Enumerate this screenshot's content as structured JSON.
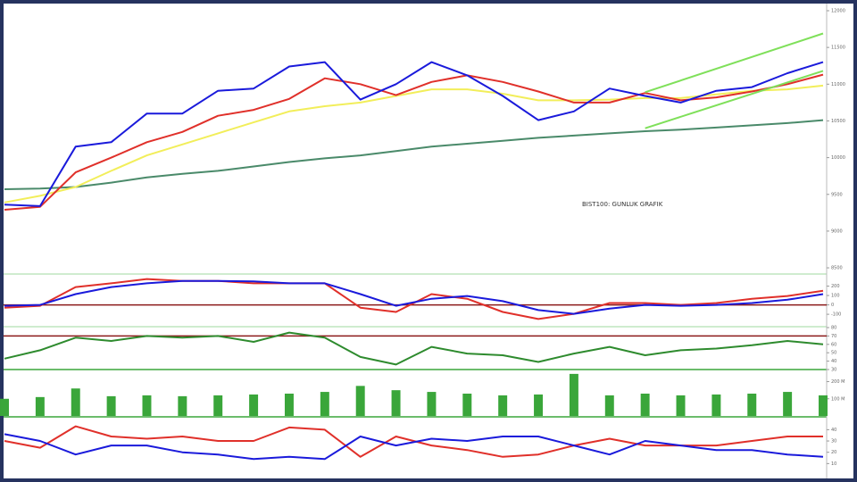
{
  "chart_data": [
    {
      "type": "line",
      "annotation": "BIST100: GUNLUK GRAFIK",
      "categories": [
        null,
        null,
        null,
        null,
        null,
        null,
        null,
        null,
        null,
        null,
        null,
        null,
        null,
        null,
        null,
        null,
        null,
        null,
        null,
        null,
        null,
        null,
        null,
        null
      ],
      "ylim": [
        8440,
        12085
      ],
      "yticks": [
        8500,
        9000,
        9500,
        10000,
        10500,
        11000,
        11500,
        12000
      ],
      "series": [
        {
          "color": "#4a8a6a",
          "values": [
            9570,
            9580,
            9600,
            9660,
            9730,
            9780,
            9820,
            9880,
            9940,
            9990,
            10030,
            10090,
            10150,
            10190,
            10230,
            10270,
            10300,
            10330,
            10360,
            10380,
            10410,
            10440,
            10470,
            10510
          ]
        },
        {
          "color": "#f2ee5a",
          "values": [
            9390,
            9480,
            9600,
            9820,
            10030,
            10180,
            10330,
            10480,
            10630,
            10700,
            10750,
            10840,
            10930,
            10930,
            10870,
            10780,
            10780,
            10790,
            10810,
            10810,
            10860,
            10910,
            10930,
            10980
          ]
        },
        {
          "color": "#e0302a",
          "values": [
            9290,
            9330,
            9800,
            10000,
            10210,
            10350,
            10570,
            10650,
            10800,
            11080,
            11000,
            10850,
            11030,
            11120,
            11030,
            10900,
            10750,
            10750,
            10880,
            10780,
            10820,
            10900,
            11000,
            11130
          ]
        },
        {
          "color": "#1a1adb",
          "values": [
            9360,
            9340,
            10150,
            10210,
            10600,
            10600,
            10910,
            10940,
            11240,
            11300,
            10790,
            11000,
            11300,
            11120,
            10840,
            10510,
            10630,
            10940,
            10840,
            10750,
            10910,
            10960,
            11150,
            11300
          ]
        }
      ],
      "channel_x": [
        18,
        23
      ],
      "channel_upper": [
        10890,
        11690
      ],
      "channel_lower": [
        10400,
        11180
      ],
      "channel_color": "#7fe05a"
    },
    {
      "type": "line",
      "ylim": [
        -270,
        300
      ],
      "yticks": [
        -100,
        0,
        100,
        200
      ],
      "hline": 0,
      "hline_color": "#8b1a1a",
      "series": [
        {
          "color": "#e0302a",
          "values": [
            -30,
            -10,
            190,
            230,
            275,
            255,
            255,
            230,
            230,
            230,
            -30,
            -75,
            115,
            65,
            -75,
            -150,
            -95,
            20,
            20,
            0,
            20,
            65,
            95,
            150
          ]
        },
        {
          "color": "#1a1adb",
          "values": [
            -10,
            0,
            115,
            190,
            230,
            255,
            255,
            250,
            230,
            230,
            115,
            -10,
            65,
            95,
            40,
            -55,
            -95,
            -40,
            0,
            -10,
            0,
            20,
            55,
            115
          ]
        }
      ]
    },
    {
      "type": "line",
      "ylim": [
        30,
        80
      ],
      "yticks": [
        30,
        40,
        50,
        60,
        70,
        80
      ],
      "hline": 70,
      "hline_color": "#8b1a1a",
      "series": [
        {
          "color": "#2e8b2e",
          "values": [
            43,
            53,
            68,
            64,
            70,
            68,
            70,
            63,
            74,
            68,
            45,
            36,
            57,
            49,
            47,
            39,
            49,
            57,
            47,
            53,
            55,
            59,
            64,
            60
          ]
        }
      ]
    },
    {
      "type": "bar",
      "ylim": [
        0,
        260
      ],
      "yticks": [
        {
          "value": 100,
          "label": "100 M"
        },
        {
          "value": 200,
          "label": "200 M"
        }
      ],
      "series": [
        {
          "color": "#3aa63a",
          "values": [
            100,
            110,
            160,
            115,
            120,
            115,
            120,
            125,
            130,
            140,
            175,
            150,
            140,
            130,
            120,
            125,
            245,
            120,
            130,
            120,
            125,
            130,
            140,
            120
          ]
        }
      ]
    },
    {
      "type": "line",
      "ylim": [
        0,
        49
      ],
      "yticks": [
        10,
        20,
        30,
        40
      ],
      "series": [
        {
          "color": "#e0302a",
          "values": [
            30,
            24,
            43,
            34,
            32,
            34,
            30,
            30,
            42,
            40,
            16,
            34,
            26,
            22,
            16,
            18,
            26,
            32,
            26,
            26,
            26,
            30,
            34,
            34
          ]
        },
        {
          "color": "#1a1adb",
          "values": [
            36,
            30,
            18,
            26,
            26,
            20,
            18,
            14,
            16,
            14,
            34,
            26,
            32,
            30,
            34,
            34,
            26,
            18,
            30,
            26,
            22,
            22,
            18,
            16
          ]
        }
      ]
    }
  ]
}
